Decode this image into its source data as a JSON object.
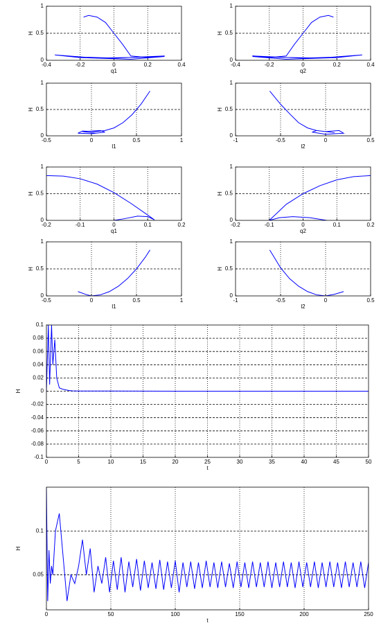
{
  "chart_data": [
    {
      "type": "line",
      "x_label": "q1",
      "y_label": "H",
      "xlim": [
        -0.4,
        0.4
      ],
      "xticks": [
        -0.4,
        -0.2,
        0,
        0.2,
        0.4
      ],
      "ylim": [
        0,
        1
      ],
      "yticks": [
        0,
        0.5,
        1
      ],
      "grid": true,
      "color": "#0000ff",
      "x": [
        -0.18,
        -0.15,
        -0.1,
        -0.05,
        0,
        0.05,
        0.1,
        0.2,
        0.3,
        0.1,
        -0.2,
        -0.35,
        -0.1,
        0.2,
        0.3,
        0,
        -0.2
      ],
      "values": [
        0.8,
        0.83,
        0.8,
        0.7,
        0.5,
        0.3,
        0.08,
        0.05,
        0.07,
        0.02,
        0.05,
        0.1,
        0.04,
        0.06,
        0.08,
        0.04,
        0.06
      ]
    },
    {
      "type": "line",
      "x_label": "q2",
      "y_label": "H",
      "xlim": [
        -0.4,
        0.4
      ],
      "xticks": [
        -0.4,
        -0.2,
        0,
        0.2,
        0.4
      ],
      "ylim": [
        0,
        1
      ],
      "yticks": [
        0,
        0.5,
        1
      ],
      "grid": true,
      "color": "#0000ff",
      "x": [
        0.18,
        0.15,
        0.1,
        0.05,
        0,
        -0.05,
        -0.1,
        -0.2,
        -0.3,
        -0.1,
        0.2,
        0.35,
        0.1,
        -0.2,
        -0.3,
        0,
        0.2
      ],
      "values": [
        0.8,
        0.83,
        0.8,
        0.7,
        0.5,
        0.3,
        0.08,
        0.05,
        0.07,
        0.02,
        0.05,
        0.1,
        0.04,
        0.06,
        0.08,
        0.04,
        0.06
      ]
    },
    {
      "type": "line",
      "x_label": "l1",
      "y_label": "H",
      "xlim": [
        -0.5,
        1
      ],
      "xticks": [
        -0.5,
        0,
        0.5,
        1
      ],
      "ylim": [
        0,
        1
      ],
      "yticks": [
        0,
        0.5,
        1
      ],
      "grid": true,
      "color": "#0000ff",
      "x": [
        0.65,
        0.55,
        0.45,
        0.35,
        0.25,
        0.15,
        0.05,
        -0.1,
        -0.15,
        0,
        0.15,
        0.1,
        -0.1,
        0.05
      ],
      "values": [
        0.85,
        0.6,
        0.4,
        0.25,
        0.15,
        0.1,
        0.08,
        0.09,
        0.05,
        0.04,
        0.07,
        0.1,
        0.08,
        0.05
      ]
    },
    {
      "type": "line",
      "x_label": "l2",
      "y_label": "H",
      "xlim": [
        -1,
        0.5
      ],
      "xticks": [
        -1,
        -0.5,
        0,
        0.5
      ],
      "ylim": [
        0,
        1
      ],
      "yticks": [
        0,
        0.5,
        1
      ],
      "grid": true,
      "color": "#0000ff",
      "x": [
        -0.62,
        -0.5,
        -0.4,
        -0.3,
        -0.2,
        -0.1,
        0,
        0.15,
        0.2,
        0,
        -0.15,
        -0.1,
        0.1
      ],
      "values": [
        0.85,
        0.6,
        0.42,
        0.25,
        0.15,
        0.1,
        0.08,
        0.1,
        0.05,
        0.03,
        0.07,
        0.1,
        0.06
      ]
    },
    {
      "type": "line",
      "x_label": "q1",
      "y_label": "H",
      "xlim": [
        -0.2,
        0.2
      ],
      "xticks": [
        -0.2,
        -0.1,
        0,
        0.1,
        0.2
      ],
      "ylim": [
        0,
        1
      ],
      "yticks": [
        0,
        0.5,
        1
      ],
      "grid": true,
      "color": "#0000ff",
      "x": [
        -0.2,
        -0.15,
        -0.1,
        -0.05,
        0,
        0.05,
        0.1,
        0.12,
        0.1,
        0.07,
        0.03,
        0
      ],
      "values": [
        0.84,
        0.83,
        0.78,
        0.68,
        0.52,
        0.32,
        0.1,
        0.01,
        0.07,
        0.08,
        0.03,
        0
      ]
    },
    {
      "type": "line",
      "x_label": "q2",
      "y_label": "H",
      "xlim": [
        -0.2,
        0.2
      ],
      "xticks": [
        -0.2,
        -0.1,
        0,
        0.1,
        0.2
      ],
      "ylim": [
        0,
        1
      ],
      "yticks": [
        0,
        0.5,
        1
      ],
      "grid": true,
      "color": "#0000ff",
      "x": [
        0.07,
        0.02,
        -0.03,
        -0.07,
        -0.1,
        -0.05,
        0,
        0.05,
        0.1,
        0.15,
        0.2
      ],
      "values": [
        0,
        0.05,
        0.07,
        0.05,
        0,
        0.3,
        0.5,
        0.65,
        0.76,
        0.82,
        0.84
      ]
    },
    {
      "type": "line",
      "x_label": "l1",
      "y_label": "H",
      "xlim": [
        -0.5,
        1
      ],
      "xticks": [
        -0.5,
        0,
        0.5,
        1
      ],
      "ylim": [
        0,
        1
      ],
      "yticks": [
        0,
        0.5,
        1
      ],
      "grid": true,
      "color": "#0000ff",
      "x": [
        -0.15,
        -0.05,
        0,
        0.1,
        0.2,
        0.3,
        0.4,
        0.5,
        0.6,
        0.65
      ],
      "values": [
        0.08,
        0.02,
        0,
        0.02,
        0.08,
        0.18,
        0.32,
        0.5,
        0.72,
        0.85
      ]
    },
    {
      "type": "line",
      "x_label": "l2",
      "y_label": "H",
      "xlim": [
        -1,
        0.5
      ],
      "xticks": [
        -1,
        -0.5,
        0,
        0.5
      ],
      "ylim": [
        0,
        1
      ],
      "yticks": [
        0,
        0.5,
        1
      ],
      "grid": true,
      "color": "#0000ff",
      "x": [
        -0.62,
        -0.5,
        -0.4,
        -0.3,
        -0.2,
        -0.1,
        0,
        0.1,
        0.2
      ],
      "values": [
        0.85,
        0.52,
        0.32,
        0.18,
        0.08,
        0.02,
        0,
        0.03,
        0.08
      ]
    },
    {
      "type": "line",
      "x_label": "t",
      "y_label": "H",
      "xlim": [
        0,
        50
      ],
      "xticks": [
        0,
        5,
        10,
        15,
        20,
        25,
        30,
        35,
        40,
        45,
        50
      ],
      "ylim": [
        -0.1,
        0.1
      ],
      "yticks": [
        -0.1,
        -0.08,
        -0.06,
        -0.04,
        -0.02,
        0,
        0.02,
        0.04,
        0.06,
        0.08,
        0.1
      ],
      "grid": true,
      "color": "#0000ff",
      "x": [
        0,
        0.3,
        0.5,
        0.8,
        1,
        1.3,
        1.6,
        2,
        2.5,
        3,
        3.5,
        4,
        5,
        10,
        15,
        20,
        25,
        30,
        35,
        40,
        45,
        50
      ],
      "values": [
        0,
        0.1,
        0.01,
        0.1,
        0.04,
        0.078,
        0.02,
        0.005,
        0.003,
        0.002,
        0.001,
        0.0005,
        0.0003,
        0.0002,
        0.0001,
        0,
        0,
        0,
        0,
        0,
        0,
        0
      ]
    },
    {
      "type": "line",
      "x_label": "t",
      "y_label": "H",
      "xlim": [
        0,
        250
      ],
      "xticks": [
        0,
        50,
        100,
        150,
        200,
        250
      ],
      "ylim": [
        0.01,
        0.15
      ],
      "yticks": [
        0.05,
        0.1
      ],
      "grid": true,
      "color": "#0000ff",
      "x": [
        0,
        1,
        2,
        3,
        4,
        5,
        7,
        10,
        13,
        16,
        19,
        22,
        25,
        28,
        31,
        34,
        37,
        40,
        43,
        46,
        49,
        52,
        55,
        58,
        61,
        64,
        67,
        70,
        73,
        76,
        79,
        82,
        85,
        88,
        91,
        94,
        97,
        100,
        103,
        106,
        109,
        112,
        115,
        118,
        121,
        124,
        127,
        130,
        133,
        136,
        139,
        142,
        145,
        148,
        151,
        154,
        157,
        160,
        163,
        166,
        169,
        172,
        175,
        178,
        181,
        184,
        187,
        190,
        193,
        196,
        199,
        202,
        205,
        208,
        211,
        214,
        217,
        220,
        223,
        226,
        229,
        232,
        235,
        238,
        241,
        244,
        247,
        250
      ],
      "values": [
        0.15,
        0.02,
        0.078,
        0.04,
        0.06,
        0.05,
        0.1,
        0.12,
        0.07,
        0.02,
        0.05,
        0.04,
        0.06,
        0.09,
        0.05,
        0.08,
        0.03,
        0.06,
        0.04,
        0.07,
        0.03,
        0.066,
        0.033,
        0.07,
        0.03,
        0.065,
        0.036,
        0.068,
        0.032,
        0.066,
        0.035,
        0.064,
        0.034,
        0.067,
        0.033,
        0.065,
        0.035,
        0.066,
        0.03,
        0.064,
        0.036,
        0.065,
        0.034,
        0.064,
        0.035,
        0.066,
        0.036,
        0.064,
        0.035,
        0.065,
        0.036,
        0.063,
        0.035,
        0.065,
        0.036,
        0.064,
        0.035,
        0.065,
        0.036,
        0.064,
        0.036,
        0.065,
        0.035,
        0.064,
        0.036,
        0.065,
        0.036,
        0.064,
        0.035,
        0.065,
        0.036,
        0.064,
        0.036,
        0.065,
        0.035,
        0.064,
        0.036,
        0.065,
        0.036,
        0.064,
        0.035,
        0.065,
        0.036,
        0.064,
        0.036,
        0.065,
        0.035,
        0.064
      ]
    }
  ]
}
